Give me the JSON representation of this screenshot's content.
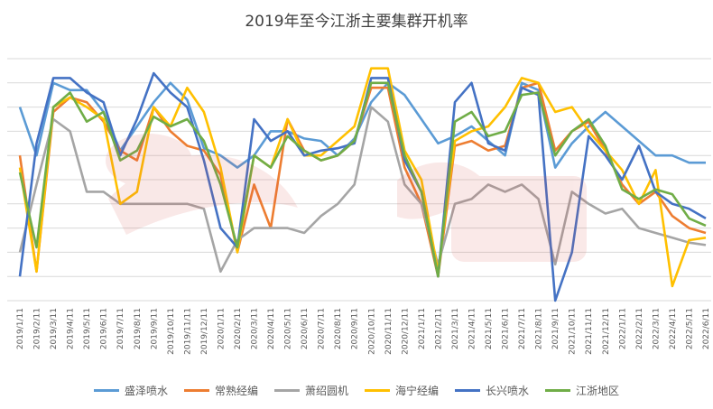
{
  "chart_data": {
    "type": "line",
    "title": "2019年至今江浙主要集群开机率",
    "xlabel": "",
    "ylabel": "",
    "grid": "horizontal",
    "legend_position": "bottom",
    "x_tick_labels": [
      "2019/1/11",
      "2019/2/11",
      "2019/3/11",
      "2019/4/11",
      "2019/5/11",
      "2019/6/11",
      "2019/7/11",
      "2019/8/11",
      "2019/9/11",
      "2019/10/11",
      "2019/11/11",
      "2019/12/11",
      "2020/1/11",
      "2020/2/11",
      "2020/3/11",
      "2020/4/11",
      "2020/5/11",
      "2020/6/11",
      "2020/7/11",
      "2020/8/11",
      "2020/9/11",
      "2020/10/11",
      "2020/11/11",
      "2020/12/11",
      "2021/1/11",
      "2021/2/11",
      "2021/3/11",
      "2021/4/11",
      "2021/5/11",
      "2021/6/11",
      "2021/7/11",
      "2021/8/11",
      "2021/9/11",
      "2021/10/11",
      "2021/11/11",
      "2021/12/11",
      "2022/1/11",
      "2022/2/11",
      "2022/3/11",
      "2022/4/11",
      "2022/5/11",
      "2022/6/11"
    ],
    "series": [
      {
        "name": "盛泽喷水",
        "color": "#5b9bd5",
        "values": [
          80,
          60,
          90,
          87,
          87,
          78,
          62,
          72,
          82,
          90,
          83,
          63,
          60,
          55,
          60,
          70,
          70,
          67,
          66,
          60,
          67,
          82,
          90,
          85,
          75,
          65,
          68,
          72,
          66,
          60,
          90,
          87,
          55,
          65,
          72,
          78,
          72,
          66,
          60,
          60,
          57,
          57
        ]
      },
      {
        "name": "常熟经编",
        "color": "#ed7d31",
        "values": [
          60,
          12,
          78,
          84,
          82,
          74,
          62,
          58,
          80,
          70,
          64,
          62,
          52,
          20,
          48,
          30,
          75,
          62,
          58,
          60,
          66,
          88,
          88,
          55,
          40,
          10,
          64,
          66,
          62,
          64,
          88,
          90,
          62,
          70,
          74,
          62,
          48,
          40,
          45,
          35,
          30,
          28
        ]
      },
      {
        "name": "萧绍圆机",
        "color": "#a5a5a5",
        "values": [
          20,
          48,
          75,
          70,
          45,
          45,
          40,
          40,
          40,
          40,
          40,
          38,
          12,
          25,
          30,
          30,
          30,
          28,
          35,
          40,
          48,
          80,
          74,
          48,
          40,
          15,
          40,
          42,
          48,
          45,
          48,
          42,
          15,
          45,
          40,
          36,
          38,
          30,
          28,
          26,
          24,
          23
        ]
      },
      {
        "name": "海宁经编",
        "color": "#ffc000",
        "values": [
          55,
          12,
          80,
          84,
          80,
          75,
          40,
          45,
          80,
          72,
          88,
          78,
          55,
          20,
          60,
          55,
          75,
          60,
          60,
          66,
          72,
          96,
          96,
          62,
          50,
          12,
          66,
          70,
          72,
          80,
          92,
          90,
          78,
          80,
          70,
          62,
          54,
          40,
          54,
          6,
          25,
          26
        ]
      },
      {
        "name": "长兴喷水",
        "color": "#4472c4",
        "values": [
          10,
          65,
          92,
          92,
          86,
          82,
          60,
          75,
          94,
          86,
          80,
          58,
          30,
          22,
          75,
          66,
          70,
          60,
          62,
          63,
          65,
          92,
          92,
          58,
          45,
          10,
          82,
          90,
          65,
          62,
          88,
          85,
          0,
          20,
          68,
          60,
          50,
          64,
          45,
          40,
          38,
          34
        ]
      },
      {
        "name": "江浙地区",
        "color": "#70ad47",
        "values": [
          53,
          22,
          80,
          86,
          74,
          78,
          58,
          62,
          76,
          72,
          75,
          66,
          48,
          22,
          60,
          55,
          68,
          62,
          58,
          60,
          66,
          90,
          90,
          60,
          45,
          10,
          74,
          78,
          68,
          70,
          85,
          86,
          60,
          70,
          75,
          64,
          46,
          42,
          46,
          44,
          34,
          31
        ]
      }
    ]
  }
}
